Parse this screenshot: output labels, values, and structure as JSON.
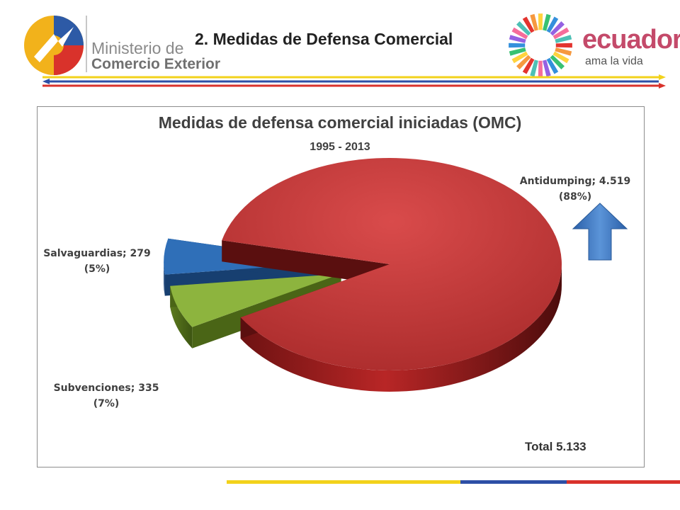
{
  "header": {
    "ministry_name": "Ministerio de",
    "ministry_sub": "Comercio Exterior",
    "title": "2. Medidas de Defensa Comercial",
    "brand_name": "ecuador",
    "brand_tagline": "ama la vida"
  },
  "icons": {
    "ministry_logo": "ministry-logo-icon",
    "country_logo": "ecuador-sun-logo-icon",
    "arrow": "up-arrow-icon"
  },
  "colors": {
    "antidumping": "#c43a3a",
    "subvenciones": "#8db43e",
    "salvaguardias": "#2f6fb8",
    "arrow": "#3d78c2"
  },
  "chart_data": {
    "type": "pie",
    "title": "Medidas de defensa comercial iniciadas (OMC)",
    "subtitle": "1995 - 2013",
    "slices": [
      {
        "label": "Antidumping",
        "value": 4519,
        "percent": 88,
        "text_line1": "Antidumping; 4.519",
        "text_line2": "(88%)"
      },
      {
        "label": "Subvenciones",
        "value": 335,
        "percent": 7,
        "text_line1": "Subvenciones; 335",
        "text_line2": "(7%)"
      },
      {
        "label": "Salvaguardias",
        "value": 279,
        "percent": 5,
        "text_line1": "Salvaguardias; 279",
        "text_line2": "(5%)"
      }
    ],
    "total_label": "Total  5.133",
    "total": 5133
  }
}
